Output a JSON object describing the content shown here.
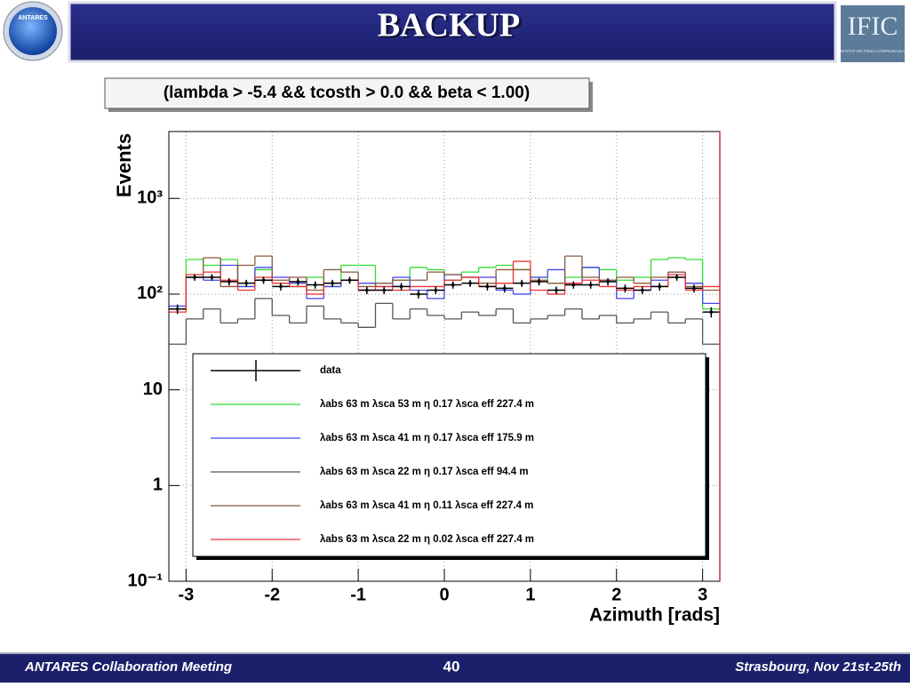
{
  "header": {
    "title": "BACKUP",
    "left_logo": "ANTARES",
    "right_logo": "IFIC",
    "right_logo_subtitle": "INSTITUT DE FÍSICA CORPUSCULAR"
  },
  "cut": "(lambda > -5.4 && tcosth > 0.0 && beta < 1.00)",
  "footer": {
    "left": "ANTARES Collaboration Meeting",
    "page": "40",
    "right": "Strasbourg, Nov 21st-25th"
  },
  "chart_data": {
    "type": "histogram",
    "ylabel": "Events",
    "xlabel": "Azimuth [rads]",
    "log_y": true,
    "grid": true,
    "xlim": [
      -3.2,
      3.2
    ],
    "ylim": [
      0.1,
      5000
    ],
    "xticks": [
      -3,
      -2,
      -1,
      0,
      1,
      2,
      3
    ],
    "yticks": [
      {
        "value": 0.1,
        "label": "10⁻¹"
      },
      1,
      10,
      {
        "value": 100,
        "label": "10²"
      },
      {
        "value": 1000,
        "label": "10³"
      }
    ],
    "bins": [
      -3.2,
      -3,
      -2.8,
      -2.6,
      -2.4,
      -2.2,
      -2,
      -1.8,
      -1.6,
      -1.4,
      -1.2,
      -1,
      -0.8,
      -0.6,
      -0.4,
      -0.2,
      0,
      0.2,
      0.4,
      0.6,
      0.8,
      1,
      1.2,
      1.4,
      1.6,
      1.8,
      2,
      2.2,
      2.4,
      2.6,
      2.8,
      3,
      3.2
    ],
    "series": [
      {
        "name": "data",
        "color": "#000000",
        "style": "points",
        "values": [
          70,
          150,
          150,
          135,
          130,
          140,
          120,
          135,
          125,
          130,
          140,
          110,
          110,
          120,
          100,
          110,
          125,
          130,
          120,
          115,
          130,
          135,
          110,
          125,
          125,
          135,
          115,
          110,
          120,
          150,
          115,
          65
        ],
        "errors": [
          8,
          12,
          12,
          12,
          11,
          12,
          11,
          12,
          11,
          11,
          12,
          10,
          10,
          11,
          10,
          10,
          11,
          11,
          11,
          11,
          11,
          12,
          10,
          11,
          11,
          12,
          11,
          10,
          11,
          12,
          11,
          8
        ]
      },
      {
        "name": "λabs 63 m λsca 53 m η 0.17 λsca eff 227.4 m",
        "color": "#33dd33",
        "style": "step",
        "values": [
          70,
          230,
          200,
          230,
          120,
          180,
          130,
          120,
          150,
          120,
          200,
          200,
          130,
          140,
          190,
          180,
          140,
          170,
          190,
          200,
          180,
          150,
          130,
          150,
          190,
          180,
          140,
          150,
          230,
          240,
          230,
          70
        ]
      },
      {
        "name": "λabs 63 m λsca 41 m η 0.17 λsca eff 175.9 m",
        "color": "#4444ee",
        "style": "step",
        "values": [
          75,
          150,
          140,
          200,
          120,
          190,
          150,
          130,
          90,
          120,
          140,
          130,
          120,
          150,
          110,
          90,
          160,
          150,
          150,
          110,
          100,
          150,
          180,
          130,
          190,
          140,
          90,
          110,
          140,
          170,
          130,
          80
        ]
      },
      {
        "name": "λabs 63 m λsca 22 m η 0.17 λsca eff 94.4 m",
        "color": "#555555",
        "style": "step",
        "values": [
          30,
          55,
          70,
          50,
          55,
          90,
          60,
          50,
          75,
          55,
          50,
          45,
          80,
          55,
          70,
          60,
          55,
          65,
          60,
          70,
          50,
          55,
          60,
          70,
          55,
          60,
          50,
          55,
          65,
          50,
          55,
          30
        ]
      },
      {
        "name": "λabs 63 m λsca 41 m η 0.11 λsca eff 227.4 m",
        "color": "#8b5a3c",
        "style": "step",
        "values": [
          70,
          150,
          240,
          120,
          200,
          250,
          140,
          150,
          110,
          180,
          170,
          120,
          130,
          140,
          140,
          170,
          160,
          150,
          130,
          180,
          180,
          140,
          130,
          250,
          150,
          140,
          150,
          130,
          150,
          170,
          120,
          110
        ]
      },
      {
        "name": "λabs 63 m λsca 22 m η 0.02 λsca eff 227.4 m",
        "color": "#ee3333",
        "style": "step",
        "values": [
          65,
          160,
          170,
          140,
          110,
          150,
          130,
          120,
          100,
          130,
          140,
          110,
          120,
          110,
          120,
          120,
          140,
          150,
          120,
          130,
          220,
          110,
          100,
          130,
          140,
          120,
          110,
          120,
          120,
          160,
          110,
          120
        ]
      }
    ]
  }
}
